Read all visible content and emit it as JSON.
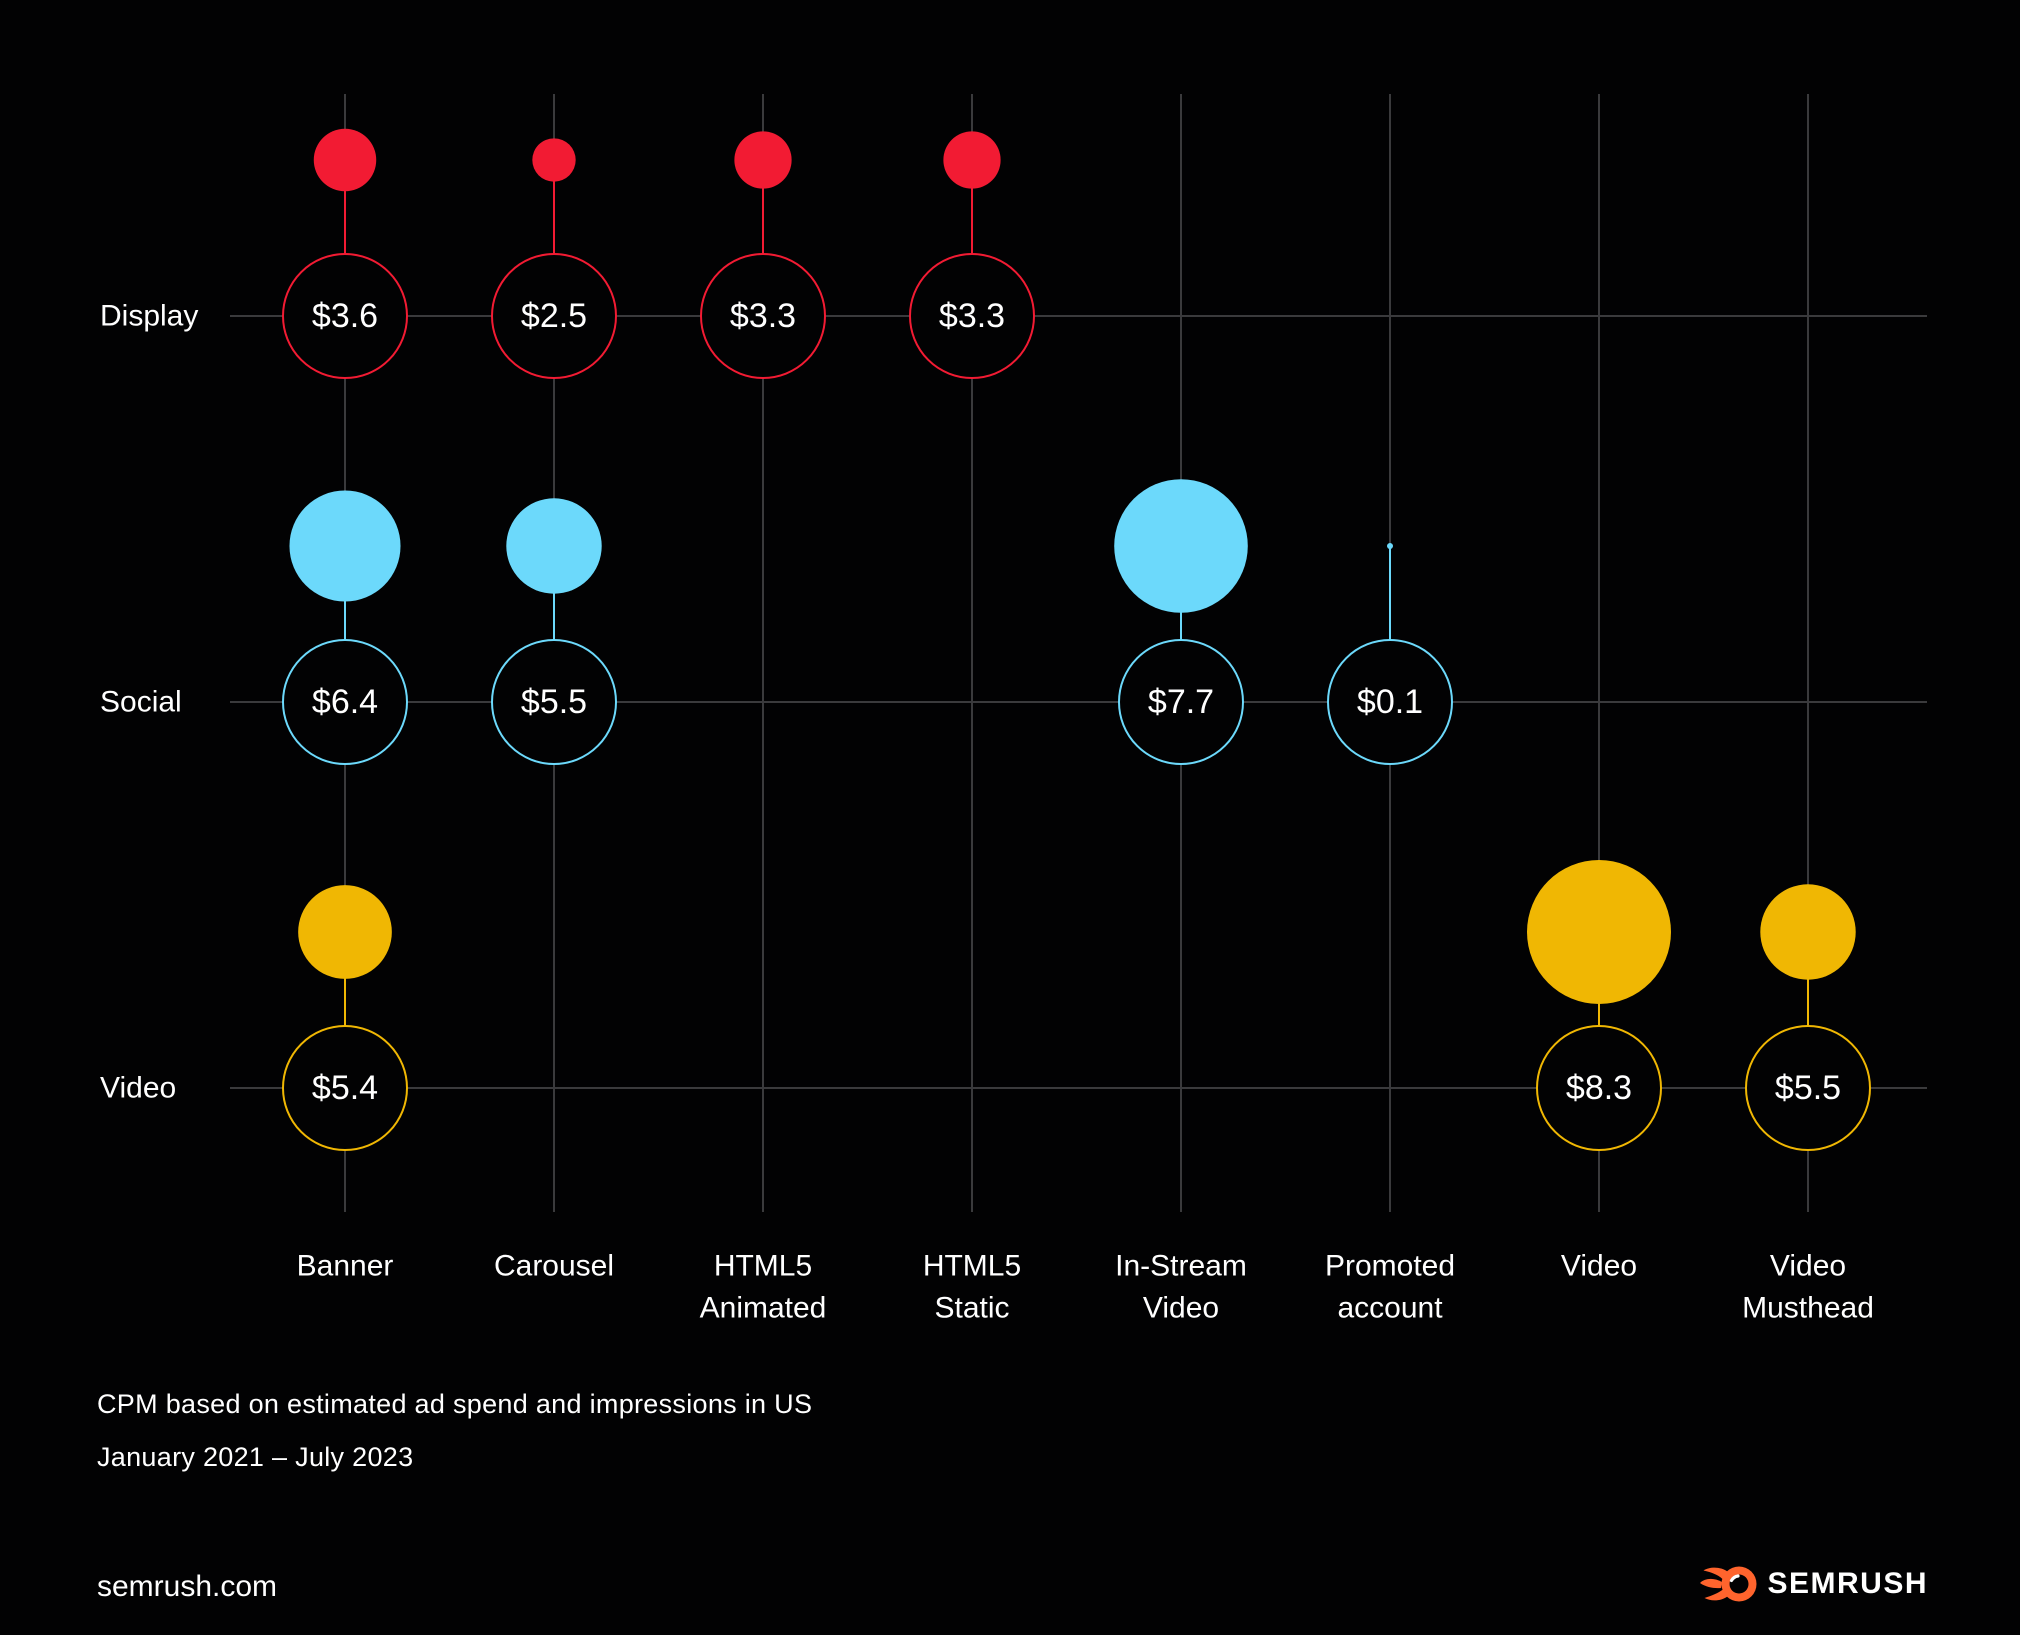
{
  "chart_data": {
    "type": "bubble",
    "title": "",
    "description_note": "CPM based on estimated ad spend and impressions in US",
    "period_note": "January 2021 – July 2023",
    "unit": "$",
    "categories": [
      {
        "id": "banner",
        "label_lines": [
          "Banner"
        ]
      },
      {
        "id": "carousel",
        "label_lines": [
          "Carousel"
        ]
      },
      {
        "id": "html5-animated",
        "label_lines": [
          "HTML5",
          "Animated"
        ]
      },
      {
        "id": "html5-static",
        "label_lines": [
          "HTML5",
          "Static"
        ]
      },
      {
        "id": "in-stream-video",
        "label_lines": [
          "In-Stream",
          "Video"
        ]
      },
      {
        "id": "promoted-account",
        "label_lines": [
          "Promoted",
          "account"
        ]
      },
      {
        "id": "video",
        "label_lines": [
          "Video"
        ]
      },
      {
        "id": "video-musthead",
        "label_lines": [
          "Video",
          "Musthead"
        ]
      }
    ],
    "series": [
      {
        "name": "Display",
        "color": "#F21B33",
        "points": [
          {
            "category": "banner",
            "value": 3.6,
            "label": "$3.6"
          },
          {
            "category": "carousel",
            "value": 2.5,
            "label": "$2.5"
          },
          {
            "category": "html5-animated",
            "value": 3.3,
            "label": "$3.3"
          },
          {
            "category": "html5-static",
            "value": 3.3,
            "label": "$3.3"
          }
        ]
      },
      {
        "name": "Social",
        "color": "#6CD9FB",
        "points": [
          {
            "category": "banner",
            "value": 6.4,
            "label": "$6.4"
          },
          {
            "category": "carousel",
            "value": 5.5,
            "label": "$5.5"
          },
          {
            "category": "in-stream-video",
            "value": 7.7,
            "label": "$7.7"
          },
          {
            "category": "promoted-account",
            "value": 0.1,
            "label": "$0.1"
          }
        ]
      },
      {
        "name": "Video",
        "color": "#F0B703",
        "points": [
          {
            "category": "banner",
            "value": 5.4,
            "label": "$5.4"
          },
          {
            "category": "video",
            "value": 8.3,
            "label": "$8.3"
          },
          {
            "category": "video-musthead",
            "value": 5.5,
            "label": "$5.5"
          }
        ]
      }
    ],
    "legend_position": "none",
    "grid": true
  },
  "footnote": {
    "line1": "CPM based on estimated ad spend and impressions in US",
    "line2": "January 2021 – July 2023"
  },
  "footer": {
    "site": "semrush.com",
    "brand": "SEMRUSH",
    "brand_color": "#FF642D"
  },
  "colors": {
    "background": "#020203",
    "gridline": "#3A3A3C",
    "text": "#FFFFFF",
    "display_red": "#F21B33",
    "social_blue": "#6CD9FB",
    "video_yellow": "#F0B703",
    "brand_orange": "#FF642D"
  }
}
